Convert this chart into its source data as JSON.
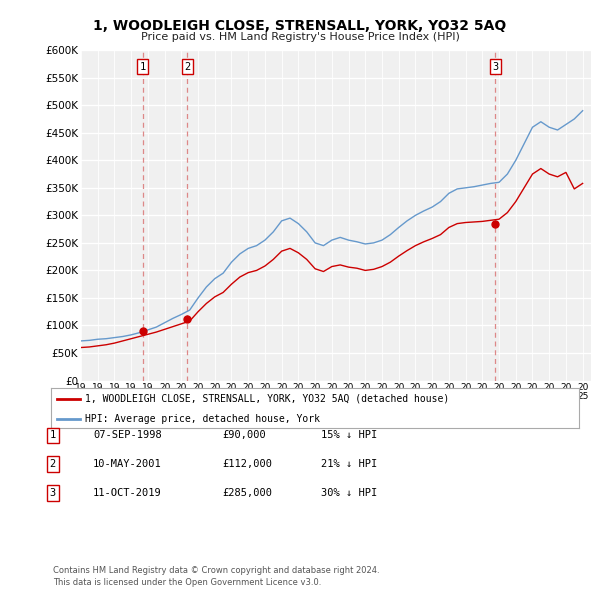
{
  "title": "1, WOODLEIGH CLOSE, STRENSALL, YORK, YO32 5AQ",
  "subtitle": "Price paid vs. HM Land Registry's House Price Index (HPI)",
  "ylabel_ticks": [
    "£0",
    "£50K",
    "£100K",
    "£150K",
    "£200K",
    "£250K",
    "£300K",
    "£350K",
    "£400K",
    "£450K",
    "£500K",
    "£550K",
    "£600K"
  ],
  "ytick_values": [
    0,
    50000,
    100000,
    150000,
    200000,
    250000,
    300000,
    350000,
    400000,
    450000,
    500000,
    550000,
    600000
  ],
  "xmin": 1995,
  "xmax": 2025.5,
  "ymin": 0,
  "ymax": 600000,
  "sale_dates": [
    1998.68,
    2001.36,
    2019.78
  ],
  "sale_prices": [
    90000,
    112000,
    285000
  ],
  "sale_labels": [
    "1",
    "2",
    "3"
  ],
  "hpi_years": [
    1995,
    1995.5,
    1996,
    1996.5,
    1997,
    1997.5,
    1998,
    1998.5,
    1999,
    1999.5,
    2000,
    2000.5,
    2001,
    2001.5,
    2002,
    2002.5,
    2003,
    2003.5,
    2004,
    2004.5,
    2005,
    2005.5,
    2006,
    2006.5,
    2007,
    2007.5,
    2008,
    2008.5,
    2009,
    2009.5,
    2010,
    2010.5,
    2011,
    2011.5,
    2012,
    2012.5,
    2013,
    2013.5,
    2014,
    2014.5,
    2015,
    2015.5,
    2016,
    2016.5,
    2017,
    2017.5,
    2018,
    2018.5,
    2019,
    2019.5,
    2020,
    2020.5,
    2021,
    2021.5,
    2022,
    2022.5,
    2023,
    2023.5,
    2024,
    2024.5,
    2025
  ],
  "hpi_values": [
    72000,
    73000,
    75000,
    76000,
    78000,
    80000,
    83000,
    87000,
    92000,
    97000,
    105000,
    113000,
    120000,
    128000,
    150000,
    170000,
    185000,
    195000,
    215000,
    230000,
    240000,
    245000,
    255000,
    270000,
    290000,
    295000,
    285000,
    270000,
    250000,
    245000,
    255000,
    260000,
    255000,
    252000,
    248000,
    250000,
    255000,
    265000,
    278000,
    290000,
    300000,
    308000,
    315000,
    325000,
    340000,
    348000,
    350000,
    352000,
    355000,
    358000,
    360000,
    375000,
    400000,
    430000,
    460000,
    470000,
    460000,
    455000,
    465000,
    475000,
    490000
  ],
  "property_years": [
    1995,
    1995.5,
    1996,
    1996.5,
    1997,
    1997.5,
    1998,
    1998.5,
    1999,
    1999.5,
    2000,
    2000.5,
    2001,
    2001.5,
    2002,
    2002.5,
    2003,
    2003.5,
    2004,
    2004.5,
    2005,
    2005.5,
    2006,
    2006.5,
    2007,
    2007.5,
    2008,
    2008.5,
    2009,
    2009.5,
    2010,
    2010.5,
    2011,
    2011.5,
    2012,
    2012.5,
    2013,
    2013.5,
    2014,
    2014.5,
    2015,
    2015.5,
    2016,
    2016.5,
    2017,
    2017.5,
    2018,
    2018.5,
    2019,
    2019.5,
    2020,
    2020.5,
    2021,
    2021.5,
    2022,
    2022.5,
    2023,
    2023.5,
    2024,
    2024.5,
    2025
  ],
  "property_values": [
    60000,
    61000,
    63000,
    65000,
    68000,
    72000,
    76000,
    80000,
    84000,
    88000,
    93000,
    98000,
    103000,
    108000,
    125000,
    140000,
    152000,
    160000,
    175000,
    188000,
    196000,
    200000,
    208000,
    220000,
    235000,
    240000,
    232000,
    220000,
    203000,
    198000,
    207000,
    210000,
    206000,
    204000,
    200000,
    202000,
    207000,
    215000,
    226000,
    236000,
    245000,
    252000,
    258000,
    265000,
    278000,
    285000,
    287000,
    288000,
    289000,
    291000,
    293000,
    305000,
    325000,
    350000,
    375000,
    385000,
    375000,
    370000,
    378000,
    348000,
    358000
  ],
  "line_color_property": "#cc0000",
  "line_color_hpi": "#6699cc",
  "vline_color": "#dd8888",
  "background_color": "#f0f0f0",
  "legend_label_property": "1, WOODLEIGH CLOSE, STRENSALL, YORK, YO32 5AQ (detached house)",
  "legend_label_hpi": "HPI: Average price, detached house, York",
  "table_rows": [
    [
      "1",
      "07-SEP-1998",
      "£90,000",
      "15% ↓ HPI"
    ],
    [
      "2",
      "10-MAY-2001",
      "£112,000",
      "21% ↓ HPI"
    ],
    [
      "3",
      "11-OCT-2019",
      "£285,000",
      "30% ↓ HPI"
    ]
  ],
  "footnote": "Contains HM Land Registry data © Crown copyright and database right 2024.\nThis data is licensed under the Open Government Licence v3.0."
}
